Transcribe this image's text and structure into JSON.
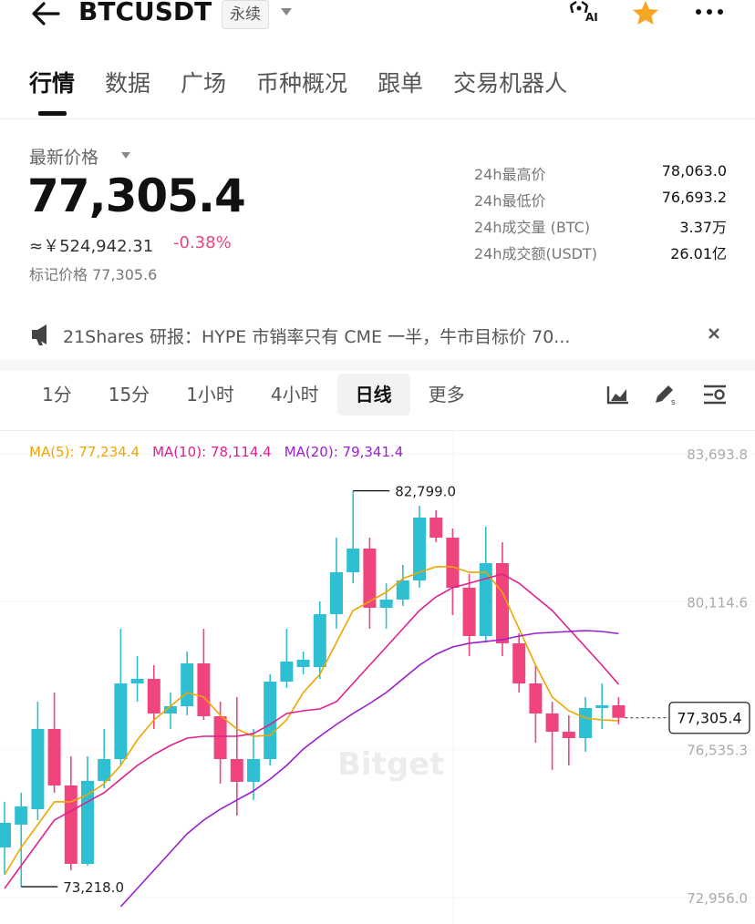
{
  "header": {
    "symbol": "BTCUSDT",
    "contract": "永续",
    "ai": "AI"
  },
  "tabs": {
    "items": [
      "行情",
      "数据",
      "广场",
      "币种概况",
      "跟单",
      "交易机器人"
    ],
    "active": 0
  },
  "price": {
    "label": "最新价格",
    "last": "77,305.4",
    "cny": "≈￥524,942.31",
    "change": "-0.38%",
    "mark": "标记价格 77,305.6"
  },
  "stats": [
    {
      "label": "24h最高价",
      "value": "78,063.0"
    },
    {
      "label": "24h最低价",
      "value": "76,693.2"
    },
    {
      "label": "24h成交量 (BTC)",
      "value": "3.37万"
    },
    {
      "label": "24h成交额(USDT)",
      "value": "26.01亿"
    }
  ],
  "news": "21Shares 研报：HYPE 市销率只有 CME 一半，牛市目标价 70...",
  "intervals": {
    "items": [
      "1分",
      "15分",
      "1小时",
      "4小时",
      "日线",
      "更多"
    ],
    "active": 4
  },
  "chart_data": {
    "type": "candlestick",
    "watermark": "Bitget",
    "up_color": "#2ebfd3",
    "down_color": "#f0457c",
    "open": [
      74168,
      74720,
      75094,
      77035,
      75668,
      73771,
      75778,
      76307,
      78137,
      78248,
      77410,
      77586,
      78622,
      77344,
      76307,
      75756,
      76307,
      78181,
      78534,
      78534,
      79813,
      80827,
      81401,
      79968,
      80166,
      80629,
      82150,
      81665,
      80453,
      79284,
      81048,
      79108,
      78137,
      77410,
      76969,
      76814,
      77542,
      77608
    ],
    "high": [
      75271,
      75491,
      77696,
      77917,
      76373,
      76373,
      77035,
      79460,
      78799,
      78578,
      77917,
      78909,
      79460,
      77696,
      77807,
      77035,
      78358,
      79460,
      78909,
      80122,
      81665,
      82799.0,
      81665,
      80563,
      81004,
      82437,
      82327,
      81886,
      80783,
      81930,
      81555,
      79350,
      78578,
      77696,
      77366,
      77807,
      78137,
      77807
    ],
    "low": [
      73507,
      73218.0,
      74830,
      75491,
      73617,
      73727,
      75602,
      76153,
      77696,
      77035,
      77035,
      77366,
      77255,
      75712,
      74940,
      75315,
      76153,
      78027,
      78358,
      78248,
      79460,
      80563,
      79460,
      79460,
      80012,
      80453,
      81555,
      79791,
      78799,
      79130,
      78799,
      77917,
      76704,
      76043,
      76153,
      76484,
      77035,
      77145
    ],
    "close": [
      74764,
      75161,
      77035,
      75668,
      73771,
      75778,
      76307,
      78137,
      78248,
      77410,
      77586,
      78622,
      77344,
      76307,
      75756,
      76307,
      78181,
      78667,
      78711,
      79813,
      80827,
      81401,
      79968,
      80166,
      80629,
      82150,
      81665,
      80453,
      79284,
      81048,
      79108,
      78137,
      77410,
      76969,
      76814,
      77542,
      77608,
      77305.4
    ],
    "series": [
      {
        "name": "MA(5): 77,234.4",
        "color": "#f0a500",
        "values": [
          73507,
          74168,
          74720,
          75271,
          75271,
          75447,
          75712,
          76153,
          76770,
          77255,
          77586,
          77917,
          77807,
          77366,
          77035,
          76858,
          76880,
          77255,
          77917,
          78358,
          79130,
          79901,
          80122,
          80342,
          80673,
          80827,
          80960,
          80960,
          80827,
          80827,
          80342,
          79460,
          78578,
          77807,
          77476,
          77299,
          77255,
          77234.4
        ]
      },
      {
        "name": "MA(10): 78,114.4",
        "color": "#e0208f",
        "values": [
          73176,
          73727,
          74279,
          74830,
          75050,
          75271,
          75491,
          75822,
          76153,
          76417,
          76638,
          76814,
          76858,
          76858,
          76858,
          76925,
          77145,
          77410,
          77476,
          77520,
          77696,
          78137,
          78578,
          79019,
          79460,
          79901,
          80232,
          80453,
          80563,
          80673,
          80783,
          80563,
          80232,
          79901,
          79460,
          79019,
          78578,
          78114.4
        ]
      },
      {
        "name": "MA(20): 79,341.4",
        "color": "#9b1fd0",
        "values": [
          null,
          null,
          null,
          null,
          null,
          null,
          null,
          72735,
          73176,
          73617,
          74058,
          74499,
          74830,
          75094,
          75315,
          75535,
          75822,
          76153,
          76550,
          76858,
          77145,
          77410,
          77652,
          77917,
          78248,
          78578,
          78843,
          79019,
          79108,
          79152,
          79196,
          79284,
          79350,
          79372,
          79394,
          79416,
          79394,
          79341.4
        ]
      }
    ],
    "ylim": [
      72404,
      84135
    ],
    "yticks": [
      {
        "value": 83693.8,
        "label": "83,693.8"
      },
      {
        "value": 80114.6,
        "label": "80,114.6"
      },
      {
        "value": 76535.3,
        "label": "76,535.3"
      },
      {
        "value": 72956.0,
        "label": "72,956.0"
      }
    ],
    "annotations": [
      {
        "label": "82,799.0",
        "value": 82799.0,
        "kind": "high"
      },
      {
        "label": "73,218.0",
        "value": 73218.0,
        "kind": "low"
      },
      {
        "label": "77,305.4",
        "value": 77305.4,
        "kind": "last"
      }
    ]
  }
}
